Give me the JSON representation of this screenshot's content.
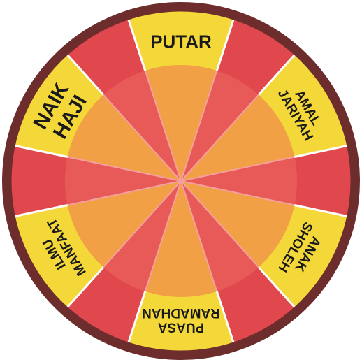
{
  "wheel": {
    "segments": [
      {
        "lines": [
          "PUTAR"
        ]
      },
      {
        "lines": [
          "AMAL",
          "JARIYAH"
        ]
      },
      {
        "lines": [
          "ANAK",
          "SHOLEH"
        ]
      },
      {
        "lines": [
          "PUASA",
          "RAMADHAN"
        ]
      },
      {
        "lines": [
          "ILMU",
          "MANFAAT"
        ]
      },
      {
        "lines": [
          "NAIK",
          "HAJI"
        ]
      }
    ]
  },
  "colors": {
    "rim": "#6e2d2d",
    "rim_outline": "#ffffff",
    "segment_yellow": "#f4d83a",
    "segment_red": "#e0484e",
    "inner_orange": "#f2a045",
    "inner_red": "#e85a58",
    "divider": "#ffffff",
    "inner_divider": "#f5a0a0"
  }
}
